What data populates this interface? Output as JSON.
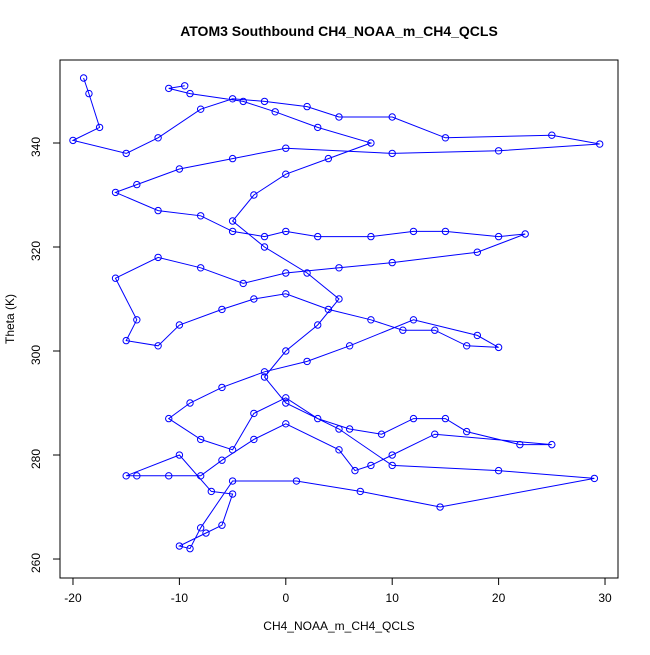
{
  "chart_data": {
    "type": "line",
    "title": "ATOM3 Southbound CH4_NOAA_m_CH4_QCLS",
    "x_label": "CH4_NOAA_m_CH4_QCLS",
    "y_label": "Theta (K)",
    "color": "#0000ff",
    "marker": "circle",
    "x": [
      -19,
      -18.5,
      -17.5,
      -20,
      -15,
      -12,
      -8,
      -5,
      -2,
      2,
      5,
      10,
      15,
      25,
      29.5,
      20,
      10,
      0,
      -5,
      -10,
      -14,
      -16,
      -12,
      -8,
      -5,
      -2,
      0,
      3,
      8,
      12,
      15,
      20,
      22.5,
      18,
      10,
      5,
      0,
      -4,
      -8,
      -12,
      -16,
      -14,
      -15,
      -12,
      -10,
      -6,
      -3,
      0,
      4,
      8,
      11,
      14,
      17,
      20,
      18,
      12,
      6,
      2,
      -2,
      -6,
      -9,
      -11,
      -8,
      -5,
      -3,
      0,
      3,
      6,
      9,
      12,
      15,
      17,
      22,
      25,
      14,
      10,
      8,
      6.5,
      5,
      0,
      -3,
      -6,
      -8,
      -11,
      -14,
      -15,
      -10,
      -7,
      -5,
      -6,
      -7.5,
      -10,
      -9,
      -8,
      -5,
      1,
      7,
      14.5,
      29,
      20,
      10,
      5,
      0,
      -2,
      0,
      3,
      5,
      2,
      -2,
      -5,
      -3,
      0,
      4,
      8,
      3,
      -1,
      -4,
      -9,
      -11,
      -9.5
    ],
    "values": [
      352.5,
      349.5,
      343,
      340.5,
      338,
      341,
      346.5,
      348.5,
      348,
      347,
      345,
      345,
      341,
      341.5,
      339.8,
      338.5,
      338,
      339,
      337,
      335,
      332,
      330.5,
      327,
      326,
      323,
      322,
      323,
      322,
      322,
      323,
      323,
      322,
      322.5,
      319,
      317,
      316,
      315,
      313,
      316,
      318,
      314,
      306,
      302,
      301,
      305,
      308,
      310,
      311,
      308,
      306,
      304,
      304,
      301,
      300.7,
      303,
      306,
      301,
      298,
      296,
      293,
      290,
      287,
      283,
      281,
      288,
      291,
      287,
      285,
      284,
      287,
      287,
      284.5,
      282,
      282,
      284,
      280,
      278,
      277,
      281,
      286,
      283,
      279,
      276,
      276,
      276,
      276,
      280,
      273,
      272.5,
      266.5,
      265,
      262.5,
      262,
      266,
      275,
      275,
      273,
      270,
      275.5,
      277,
      278,
      285,
      290,
      295,
      300,
      305,
      310,
      315,
      320,
      325,
      330,
      334,
      337,
      340,
      343,
      346,
      348,
      349.5,
      350.5,
      351
    ],
    "xlim": [
      -21.22,
      31.22
    ],
    "ylim": [
      256.35,
      355.96
    ],
    "xticks": [
      -20,
      -10,
      0,
      10,
      20,
      30
    ],
    "yticks": [
      260,
      280,
      300,
      320,
      340
    ]
  }
}
